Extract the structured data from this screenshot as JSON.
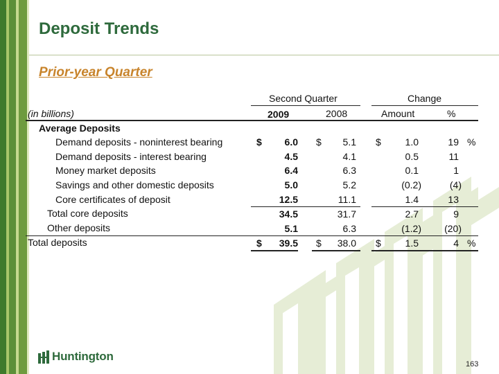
{
  "title": "Deposit Trends",
  "subtitle": "Prior-year Quarter",
  "table": {
    "group_headers": {
      "quarter": "Second Quarter",
      "change": "Change"
    },
    "unit_label": "(in billions)",
    "col_headers": {
      "y2009": "2009",
      "y2008": "2008",
      "amount": "Amount",
      "pct": "%"
    },
    "section_label": "Average Deposits",
    "rows": [
      {
        "label": "Demand deposits - noninterest bearing",
        "c1_cur": "$",
        "c1": "6.0",
        "c2_cur": "$",
        "c2": "5.1",
        "c3_cur": "$",
        "c3": "1.0",
        "c4": "19",
        "c4_sfx": "%"
      },
      {
        "label": "Demand deposits - interest bearing",
        "c1": "4.5",
        "c2": "4.1",
        "c3": "0.5",
        "c4": "11"
      },
      {
        "label": "Money market deposits",
        "c1": "6.4",
        "c2": "6.3",
        "c3": "0.1",
        "c4": "1"
      },
      {
        "label": "Savings and other domestic deposits",
        "c1": "5.0",
        "c2": "5.2",
        "c3": "(0.2)",
        "c4": "(4)"
      },
      {
        "label": "Core certificates of deposit",
        "c1": "12.5",
        "c2": "11.1",
        "c3": "1.4",
        "c4": "13"
      },
      {
        "label": "Total core deposits",
        "c1": "34.5",
        "c2": "31.7",
        "c3": "2.7",
        "c4": "9"
      },
      {
        "label": "Other deposits",
        "c1": "5.1",
        "c2": "6.3",
        "c3": "(1.2)",
        "c4": "(20)"
      },
      {
        "label": "Total deposits",
        "c1_cur": "$",
        "c1": "39.5",
        "c2_cur": "$",
        "c2": "38.0",
        "c3_cur": "$",
        "c3": "1.5",
        "c4": "4",
        "c4_sfx": "%"
      }
    ]
  },
  "footer": {
    "brand": "Huntington",
    "page_number": "163"
  },
  "colors": {
    "title": "#2e6a3c",
    "subtitle": "#c8842c",
    "stripe_dark": "#3e7a2c",
    "watermark": "#e4ebd2"
  },
  "icons": {
    "logo": "huntington-logo-mark"
  }
}
